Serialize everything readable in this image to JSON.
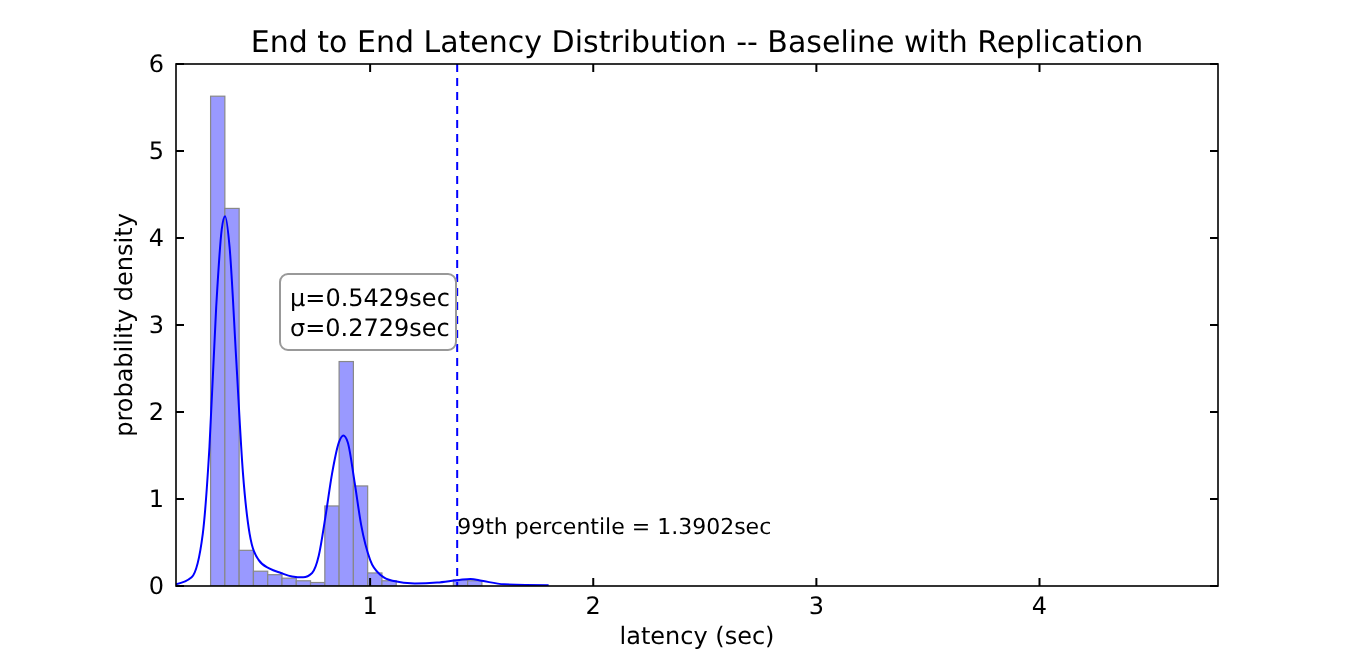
{
  "chart_data": {
    "type": "histogram",
    "title": "End to End Latency Distribution -- Baseline with Replication",
    "xlabel": "latency (sec)",
    "ylabel": "probability density",
    "bins": [
      0.285,
      0.349,
      0.413,
      0.477,
      0.541,
      0.605,
      0.669,
      0.733,
      0.797,
      0.861,
      0.925,
      0.989,
      1.053,
      1.117,
      1.181,
      1.245,
      1.309,
      1.373,
      1.437,
      1.501,
      1.565
    ],
    "values": [
      5.63,
      4.34,
      0.41,
      0.17,
      0.13,
      0.09,
      0.06,
      0.04,
      0.92,
      2.58,
      1.15,
      0.15,
      0.06,
      null,
      null,
      null,
      null,
      0.07,
      0.06,
      null
    ],
    "color": "#9999ff",
    "series": [
      {
        "type": "line",
        "color": "#0000ff",
        "x": [
          0.13,
          0.2,
          0.25,
          0.28,
          0.31,
          0.335,
          0.35,
          0.37,
          0.4,
          0.43,
          0.46,
          0.5,
          0.55,
          0.6,
          0.65,
          0.7,
          0.74,
          0.77,
          0.8,
          0.83,
          0.86,
          0.88,
          0.9,
          0.93,
          0.96,
          1.0,
          1.05,
          1.1,
          1.2,
          1.3,
          1.4,
          1.45,
          1.5,
          1.6,
          1.8
        ],
        "values": [
          0.02,
          0.1,
          0.6,
          1.6,
          3.2,
          4.1,
          4.25,
          3.9,
          2.6,
          1.3,
          0.6,
          0.3,
          0.2,
          0.15,
          0.11,
          0.1,
          0.15,
          0.35,
          0.8,
          1.3,
          1.65,
          1.73,
          1.65,
          1.2,
          0.7,
          0.3,
          0.12,
          0.06,
          0.03,
          0.04,
          0.07,
          0.08,
          0.06,
          0.02,
          0.01
        ]
      }
    ],
    "xlim": [
      0.13,
      4.8
    ],
    "ylim": [
      0,
      6
    ],
    "xticks": [
      1,
      2,
      3,
      4
    ],
    "yticks": [
      0,
      1,
      2,
      3,
      4,
      5,
      6
    ],
    "ref_lines": [
      {
        "axis": "x",
        "value": 1.3902,
        "label": "99th percentile = 1.3902sec",
        "color": "#0000ff",
        "line_style": "dashed"
      }
    ],
    "annotations": [
      "μ=0.5429sec\nσ=0.2729sec"
    ],
    "grid": false
  }
}
